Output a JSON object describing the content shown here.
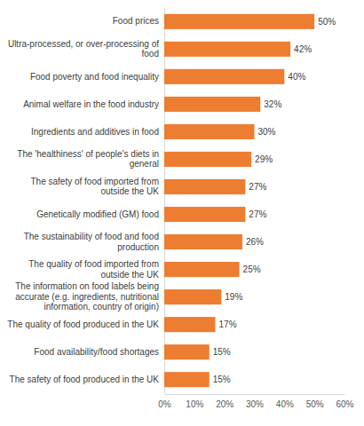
{
  "chart_data": {
    "type": "bar",
    "orientation": "horizontal",
    "color": "#ed7d31",
    "data_labels": true,
    "grid": false,
    "categories": [
      "Food prices",
      "Ultra-processed, or over-processing of food",
      "Food poverty and food inequality",
      "Animal welfare in the food industry",
      "Ingredients and additives in food",
      "The 'healthiness' of people's diets in general",
      "The safety of food imported from outside the UK",
      "Genetically modified (GM) food",
      "The sustainability of food and food production",
      "The quality of food imported from outside the UK",
      "The information on food labels being accurate (e.g. ingredients, nutritional information, country of origin)",
      "The quality of food produced in the UK",
      "Food availability/food shortages",
      "The safety of food produced in the UK"
    ],
    "values": [
      50,
      42,
      40,
      32,
      30,
      29,
      27,
      27,
      26,
      25,
      19,
      17,
      15,
      15
    ],
    "value_labels": [
      "50%",
      "42%",
      "40%",
      "32%",
      "30%",
      "29%",
      "27%",
      "27%",
      "26%",
      "25%",
      "19%",
      "17%",
      "15%",
      "15%"
    ],
    "xlim": [
      0,
      60
    ],
    "xticks": [
      {
        "value": 0,
        "label": "0%"
      },
      {
        "value": 10,
        "label": "10%"
      },
      {
        "value": 20,
        "label": "20%"
      },
      {
        "value": 30,
        "label": "30%"
      },
      {
        "value": 40,
        "label": "40%"
      },
      {
        "value": 50,
        "label": "50%"
      },
      {
        "value": 60,
        "label": "60%"
      }
    ]
  }
}
